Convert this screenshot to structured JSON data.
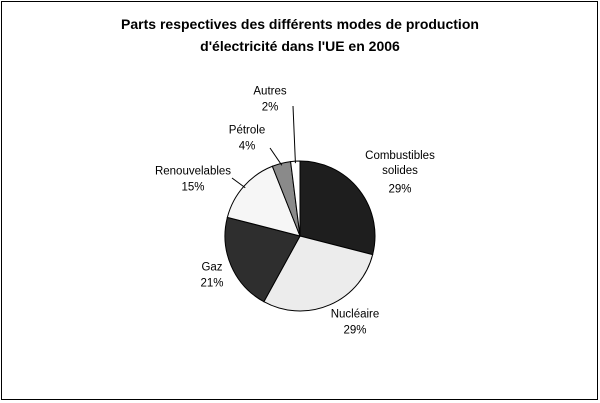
{
  "chart_data": {
    "type": "pie",
    "title": [
      "Parts respectives des différents modes de production",
      "d'électricité dans l'UE en 2006"
    ],
    "categories": [
      "Combustibles solides",
      "Nucléaire",
      "Gaz",
      "Renouvelables",
      "Pétrole",
      "Autres"
    ],
    "values": [
      29,
      29,
      21,
      15,
      4,
      2
    ],
    "value_labels": [
      "29%",
      "29%",
      "21%",
      "15%",
      "4%",
      "2%"
    ],
    "colors": [
      "#1e1e1e",
      "#ececec",
      "#2e2e2e",
      "#f6f6f6",
      "#8a8a8a",
      "#ffffff"
    ]
  }
}
